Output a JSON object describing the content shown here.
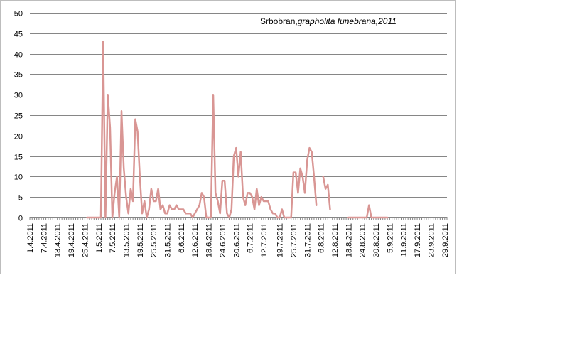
{
  "chart_data": {
    "type": "line",
    "title_plain": "Srbobran,",
    "title_italic": "grapholita funebrana,2011",
    "xlabel": "",
    "ylabel": "",
    "ylim": [
      0,
      50
    ],
    "yticks": [
      0,
      5,
      10,
      15,
      20,
      25,
      30,
      35,
      40,
      45,
      50
    ],
    "grid": "horizontal",
    "legend": "none",
    "series_color": "#d99694",
    "x_tick_labels": [
      "1.4.2011",
      "7.4.2011",
      "13.4.2011",
      "19.4.2011",
      "25.4.2011",
      "1.5.2011",
      "7.5.2011",
      "13.5.2011",
      "19.5.2011",
      "25.5.2011",
      "31.5.2011",
      "6.6.2011",
      "12.6.2011",
      "18.6.2011",
      "24.6.2011",
      "30.6.2011",
      "6.7.2011",
      "12.7.2011",
      "19.7.2011",
      "25.7.2011",
      "31.7.2011",
      "6.8.2011",
      "12.8.2011",
      "18.8.2011",
      "24.8.2011",
      "30.8.2011",
      "5.9.2011",
      "11.9.2011",
      "17.9.2011",
      "23.9.2011",
      "29.9.2011"
    ],
    "x_tick_day_index": [
      0,
      6,
      12,
      18,
      24,
      30,
      36,
      42,
      48,
      54,
      60,
      66,
      72,
      78,
      84,
      90,
      96,
      102,
      109,
      115,
      121,
      127,
      133,
      139,
      145,
      151,
      157,
      163,
      169,
      175,
      181
    ],
    "x_domain_days": [
      0,
      182
    ],
    "series": [
      {
        "segments": [
          [
            [
              25,
              0
            ],
            [
              31,
              0
            ],
            [
              32,
              43
            ],
            [
              33,
              0
            ],
            [
              34,
              30
            ],
            [
              35,
              22
            ],
            [
              36,
              0
            ],
            [
              37,
              6
            ],
            [
              38,
              10
            ],
            [
              39,
              0
            ],
            [
              40,
              26
            ],
            [
              41,
              12
            ],
            [
              42,
              5
            ],
            [
              43,
              1
            ],
            [
              44,
              7
            ],
            [
              45,
              4
            ],
            [
              46,
              24
            ],
            [
              47,
              21
            ],
            [
              48,
              10
            ],
            [
              49,
              1
            ],
            [
              50,
              4
            ],
            [
              51,
              0
            ],
            [
              52,
              2
            ],
            [
              53,
              7
            ],
            [
              54,
              4
            ],
            [
              55,
              4
            ],
            [
              56,
              7
            ],
            [
              57,
              2
            ],
            [
              58,
              3
            ],
            [
              59,
              1
            ],
            [
              60,
              1
            ],
            [
              61,
              3
            ],
            [
              62,
              2
            ],
            [
              63,
              2
            ],
            [
              64,
              3
            ],
            [
              65,
              2
            ],
            [
              66,
              2
            ],
            [
              67,
              2
            ],
            [
              68,
              1
            ],
            [
              69,
              1
            ],
            [
              70,
              1
            ],
            [
              71,
              0
            ],
            [
              72,
              1
            ],
            [
              73,
              2
            ],
            [
              74,
              3
            ],
            [
              75,
              6
            ],
            [
              76,
              5
            ],
            [
              77,
              0
            ],
            [
              78,
              0
            ],
            [
              79,
              0
            ],
            [
              80,
              30
            ],
            [
              81,
              6
            ],
            [
              82,
              4
            ],
            [
              83,
              1
            ],
            [
              84,
              9
            ],
            [
              85,
              9
            ],
            [
              86,
              1
            ],
            [
              87,
              0
            ],
            [
              88,
              2
            ],
            [
              89,
              15
            ],
            [
              90,
              17
            ],
            [
              91,
              10
            ],
            [
              92,
              16
            ],
            [
              93,
              5
            ],
            [
              94,
              3
            ],
            [
              95,
              6
            ],
            [
              96,
              6
            ],
            [
              97,
              5
            ],
            [
              98,
              2
            ],
            [
              99,
              7
            ],
            [
              100,
              3
            ],
            [
              101,
              5
            ],
            [
              102,
              4
            ],
            [
              103,
              4
            ],
            [
              104,
              4
            ],
            [
              105,
              2
            ],
            [
              106,
              1
            ],
            [
              107,
              1
            ],
            [
              108,
              0
            ],
            [
              109,
              0
            ],
            [
              110,
              2
            ],
            [
              111,
              0
            ],
            [
              112,
              0
            ],
            [
              113,
              0
            ],
            [
              114,
              0
            ],
            [
              115,
              11
            ],
            [
              116,
              11
            ],
            [
              117,
              6
            ],
            [
              118,
              12
            ],
            [
              119,
              10
            ],
            [
              120,
              6
            ],
            [
              121,
              14
            ],
            [
              122,
              17
            ],
            [
              123,
              16
            ],
            [
              124,
              10
            ],
            [
              125,
              3
            ]
          ],
          [
            [
              128,
              10
            ],
            [
              129,
              7
            ],
            [
              130,
              8
            ],
            [
              131,
              2
            ]
          ],
          [
            [
              139,
              0
            ],
            [
              147,
              0
            ],
            [
              148,
              3
            ],
            [
              149,
              0
            ],
            [
              153,
              0
            ],
            [
              156,
              0
            ]
          ]
        ]
      }
    ]
  }
}
